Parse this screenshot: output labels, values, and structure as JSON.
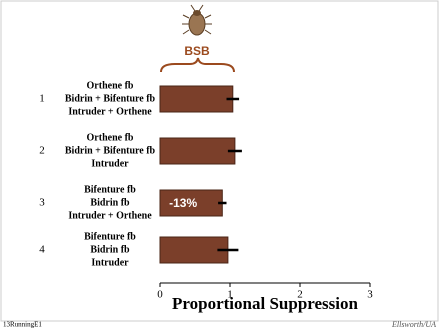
{
  "chart_data": {
    "type": "bar",
    "orientation": "horizontal",
    "header": "BSB",
    "row_numbers": [
      "1",
      "2",
      "3",
      "4"
    ],
    "categories": [
      [
        "Orthene fb",
        "Bidrin + Bifenture fb",
        "Intruder + Orthene"
      ],
      [
        "Orthene fb",
        "Bidrin + Bifenture fb",
        "Intruder"
      ],
      [
        "Bifenture fb",
        "Bidrin fb",
        "Intruder + Orthene"
      ],
      [
        "Bifenture fb",
        "Bidrin fb",
        "Intruder"
      ]
    ],
    "values": [
      1.04,
      1.07,
      0.89,
      0.97
    ],
    "errors": [
      0.09,
      0.1,
      0.06,
      0.15
    ],
    "color": "#7b3f2a",
    "annotation": "-13%",
    "xlabel": "Proportional Suppression",
    "xlim": [
      0,
      3
    ],
    "xticks": [
      0,
      1,
      2,
      3
    ],
    "footer_left": "13RunningE1",
    "footer_right": "Ellsworth/UA"
  }
}
